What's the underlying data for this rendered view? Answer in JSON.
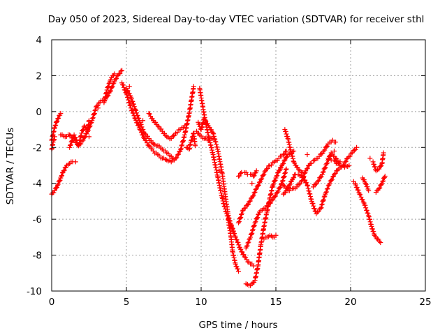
{
  "chart_data": {
    "type": "scatter",
    "title": "Day 050 of 2023, Sidereal Day-to-day VTEC variation (SDTVAR) for receiver sthl",
    "xlabel": "GPS time / hours",
    "ylabel": "SDTVAR / TECUs",
    "xlim": [
      0,
      25
    ],
    "ylim": [
      -10,
      4
    ],
    "xticks": [
      "0",
      "5",
      "10",
      "15",
      "20",
      "25"
    ],
    "yticks": [
      "-10",
      "-8",
      "-6",
      "-4",
      "-2",
      "0",
      "2",
      "4"
    ],
    "grid": true,
    "marker": "+",
    "color": "#ff0000",
    "series": [
      {
        "x": [
          0.0,
          0.2,
          0.4,
          0.6,
          0.8,
          1.0,
          1.2,
          1.4,
          1.6
        ],
        "y": [
          -4.6,
          -4.4,
          -4.1,
          -3.7,
          -3.3,
          -3.0,
          -2.9,
          -2.8,
          -2.8
        ]
      },
      {
        "x": [
          0.0,
          0.2,
          0.4,
          0.6
        ],
        "y": [
          -1.6,
          -0.9,
          -0.4,
          -0.1
        ]
      },
      {
        "x": [
          0.0,
          0.1,
          0.2
        ],
        "y": [
          -2.1,
          -1.7,
          -1.4
        ]
      },
      {
        "x": [
          0.6,
          0.9,
          1.2,
          1.5,
          1.8,
          2.1,
          2.4,
          2.7,
          3.0,
          3.3,
          3.6,
          3.9,
          4.2,
          4.5,
          4.7
        ],
        "y": [
          -1.3,
          -1.4,
          -1.3,
          -1.6,
          -1.9,
          -1.6,
          -1.1,
          -0.5,
          0.3,
          0.6,
          0.7,
          1.1,
          1.7,
          2.1,
          2.3
        ]
      },
      {
        "x": [
          1.2,
          1.5,
          1.8,
          2.0,
          2.2,
          2.4,
          2.5
        ],
        "y": [
          -2.0,
          -1.3,
          -1.9,
          -1.2,
          -0.8,
          -1.1,
          -0.5
        ]
      },
      {
        "x": [
          3.5,
          3.7,
          3.9,
          4.0,
          4.2
        ],
        "y": [
          0.5,
          1.2,
          1.7,
          1.9,
          2.1
        ]
      },
      {
        "x": [
          4.7,
          5.0,
          5.3,
          5.6,
          5.9,
          6.2,
          6.5,
          6.8,
          7.1,
          7.4,
          7.7,
          8.0,
          8.3,
          8.6,
          8.9,
          9.2,
          9.5
        ],
        "y": [
          1.6,
          1.0,
          0.2,
          -0.4,
          -1.0,
          -1.5,
          -1.9,
          -2.2,
          -2.4,
          -2.6,
          -2.7,
          -2.8,
          -2.6,
          -2.2,
          -1.3,
          -0.1,
          1.4
        ]
      },
      {
        "x": [
          5.0,
          5.3,
          5.6,
          5.9,
          6.2,
          6.5,
          6.8,
          7.1,
          7.4,
          7.7,
          8.0,
          8.2
        ],
        "y": [
          1.3,
          0.8,
          0.1,
          -0.6,
          -1.2,
          -1.5,
          -1.8,
          -1.9,
          -2.1,
          -2.3,
          -2.5,
          -2.7
        ]
      },
      {
        "x": [
          6.5,
          6.8,
          7.1,
          7.4,
          7.7,
          8.0,
          8.3,
          8.6,
          8.9
        ],
        "y": [
          -0.1,
          -0.5,
          -0.8,
          -1.1,
          -1.4,
          -1.5,
          -1.2,
          -1.0,
          -0.8
        ]
      },
      {
        "x": [
          9.0,
          9.2,
          9.3,
          9.5,
          9.6
        ],
        "y": [
          -2.0,
          -2.1,
          -1.7,
          -1.2,
          -1.9
        ]
      },
      {
        "x": [
          9.9,
          10.1,
          10.3,
          10.5,
          10.8,
          11.1,
          11.4,
          11.7,
          12.0,
          12.3,
          12.6,
          12.9,
          13.2,
          13.5
        ],
        "y": [
          1.3,
          0.3,
          -0.6,
          -1.4,
          -2.4,
          -3.6,
          -4.8,
          -5.7,
          -6.3,
          -7.0,
          -7.6,
          -8.1,
          -8.4,
          -8.6
        ]
      },
      {
        "x": [
          9.8,
          10.0,
          10.2,
          10.5,
          10.8,
          11.1,
          11.4,
          11.6,
          11.8,
          12.0,
          12.2
        ],
        "y": [
          -0.6,
          -1.0,
          -0.4,
          -0.8,
          -1.2,
          -2.1,
          -3.4,
          -4.6,
          -5.7,
          -6.4,
          -6.8
        ]
      },
      {
        "x": [
          9.7,
          9.9,
          10.2,
          10.5,
          10.8
        ],
        "y": [
          -1.1,
          -1.3,
          -1.5,
          -1.6,
          -1.5
        ]
      },
      {
        "x": [
          11.8,
          12.0,
          12.1,
          12.3,
          12.5
        ],
        "y": [
          -6.0,
          -7.0,
          -7.8,
          -8.5,
          -8.9
        ]
      },
      {
        "x": [
          13.0,
          13.2,
          13.4,
          13.6,
          13.8,
          14.0,
          14.2,
          14.4,
          14.6,
          14.8,
          15.0,
          15.2,
          15.4,
          15.6,
          15.8,
          16.0,
          16.2
        ],
        "y": [
          -9.6,
          -9.7,
          -9.6,
          -9.4,
          -8.6,
          -7.4,
          -6.4,
          -5.6,
          -4.8,
          -4.1,
          -3.7,
          -3.3,
          -3.0,
          -2.7,
          -2.4,
          -2.3,
          -2.2
        ]
      },
      {
        "x": [
          13.0,
          13.3,
          13.6,
          13.9,
          14.2,
          14.5,
          14.8,
          15.1,
          15.4,
          15.7
        ],
        "y": [
          -7.6,
          -7.0,
          -6.2,
          -5.6,
          -5.4,
          -5.2,
          -4.9,
          -4.5,
          -4.0,
          -3.2
        ]
      },
      {
        "x": [
          12.5,
          12.8,
          13.1,
          13.4,
          13.7,
          14.0,
          14.3,
          14.6,
          14.9,
          15.2,
          15.5,
          15.7
        ],
        "y": [
          -6.2,
          -5.5,
          -5.2,
          -4.8,
          -4.3,
          -3.8,
          -3.3,
          -3.0,
          -2.8,
          -2.6,
          -2.4,
          -2.2
        ]
      },
      {
        "x": [
          12.5,
          12.7,
          12.9,
          13.1,
          13.3,
          13.5,
          13.7
        ],
        "y": [
          -3.6,
          -3.4,
          -3.4,
          -3.5,
          -3.5,
          -3.6,
          -3.3
        ]
      },
      {
        "x": [
          14.2,
          14.4,
          14.6,
          14.8,
          15.0
        ],
        "y": [
          -7.1,
          -7.0,
          -6.9,
          -7.0,
          -6.9
        ]
      },
      {
        "x": [
          15.5,
          15.8,
          16.1,
          16.4,
          16.7,
          17.0,
          17.3,
          17.6,
          17.9,
          18.2,
          18.5,
          18.8,
          19.0
        ],
        "y": [
          -4.1,
          -4.4,
          -4.3,
          -4.2,
          -3.9,
          -3.3,
          -2.9,
          -2.7,
          -2.5,
          -2.2,
          -1.8,
          -1.6,
          -1.7
        ]
      },
      {
        "x": [
          15.5,
          15.7,
          15.9,
          16.1,
          16.3
        ],
        "y": [
          -4.6,
          -4.4,
          -4.1,
          -3.8,
          -3.5
        ]
      },
      {
        "x": [
          15.6,
          15.8,
          16.0,
          16.2,
          16.4,
          16.6,
          16.8
        ],
        "y": [
          -1.0,
          -1.5,
          -2.2,
          -2.8,
          -3.1,
          -3.3,
          -3.4
        ]
      },
      {
        "x": [
          16.5,
          16.8,
          17.1,
          17.4,
          17.7,
          18.0,
          18.3,
          18.6,
          18.9,
          19.2,
          19.5,
          19.8,
          20.1,
          20.4
        ],
        "y": [
          -3.5,
          -3.6,
          -4.1,
          -5.0,
          -5.7,
          -5.4,
          -4.6,
          -4.0,
          -3.5,
          -3.2,
          -3.0,
          -2.6,
          -2.3,
          -2.0
        ]
      },
      {
        "x": [
          17.5,
          17.8,
          18.1,
          18.4,
          18.7,
          19.0,
          19.3,
          19.6,
          19.9
        ],
        "y": [
          -4.2,
          -3.9,
          -3.5,
          -2.9,
          -2.3,
          -2.6,
          -3.0,
          -3.1,
          -3.0
        ]
      },
      {
        "x": [
          18.5,
          18.7,
          18.9,
          19.1,
          19.3
        ],
        "y": [
          -2.6,
          -2.7,
          -2.7,
          -2.9,
          -2.8
        ]
      },
      {
        "x": [
          20.3,
          20.6,
          20.9,
          21.2,
          21.4,
          21.6,
          21.8,
          22.0
        ],
        "y": [
          -4.0,
          -4.6,
          -5.1,
          -5.8,
          -6.4,
          -6.9,
          -7.1,
          -7.3
        ]
      },
      {
        "x": [
          20.8,
          21.0,
          21.2
        ],
        "y": [
          -3.7,
          -4.0,
          -4.4
        ]
      },
      {
        "x": [
          21.5,
          21.7,
          21.9,
          22.1,
          22.2
        ],
        "y": [
          -2.8,
          -3.3,
          -3.2,
          -2.9,
          -2.3
        ]
      },
      {
        "x": [
          21.7,
          21.9,
          22.1,
          22.3
        ],
        "y": [
          -4.5,
          -4.3,
          -4.0,
          -3.6
        ]
      },
      {
        "x": [
          2.5,
          3.1,
          5.2,
          6.1,
          9.1,
          11.2,
          13.4,
          15.3,
          17.1,
          18.9,
          20.2,
          21.3
        ],
        "y": [
          -1.4,
          0.2,
          1.4,
          -0.5,
          -2.0,
          -3.3,
          -4.0,
          -3.2,
          -2.4,
          -2.2,
          -3.9,
          -2.6
        ]
      }
    ]
  }
}
